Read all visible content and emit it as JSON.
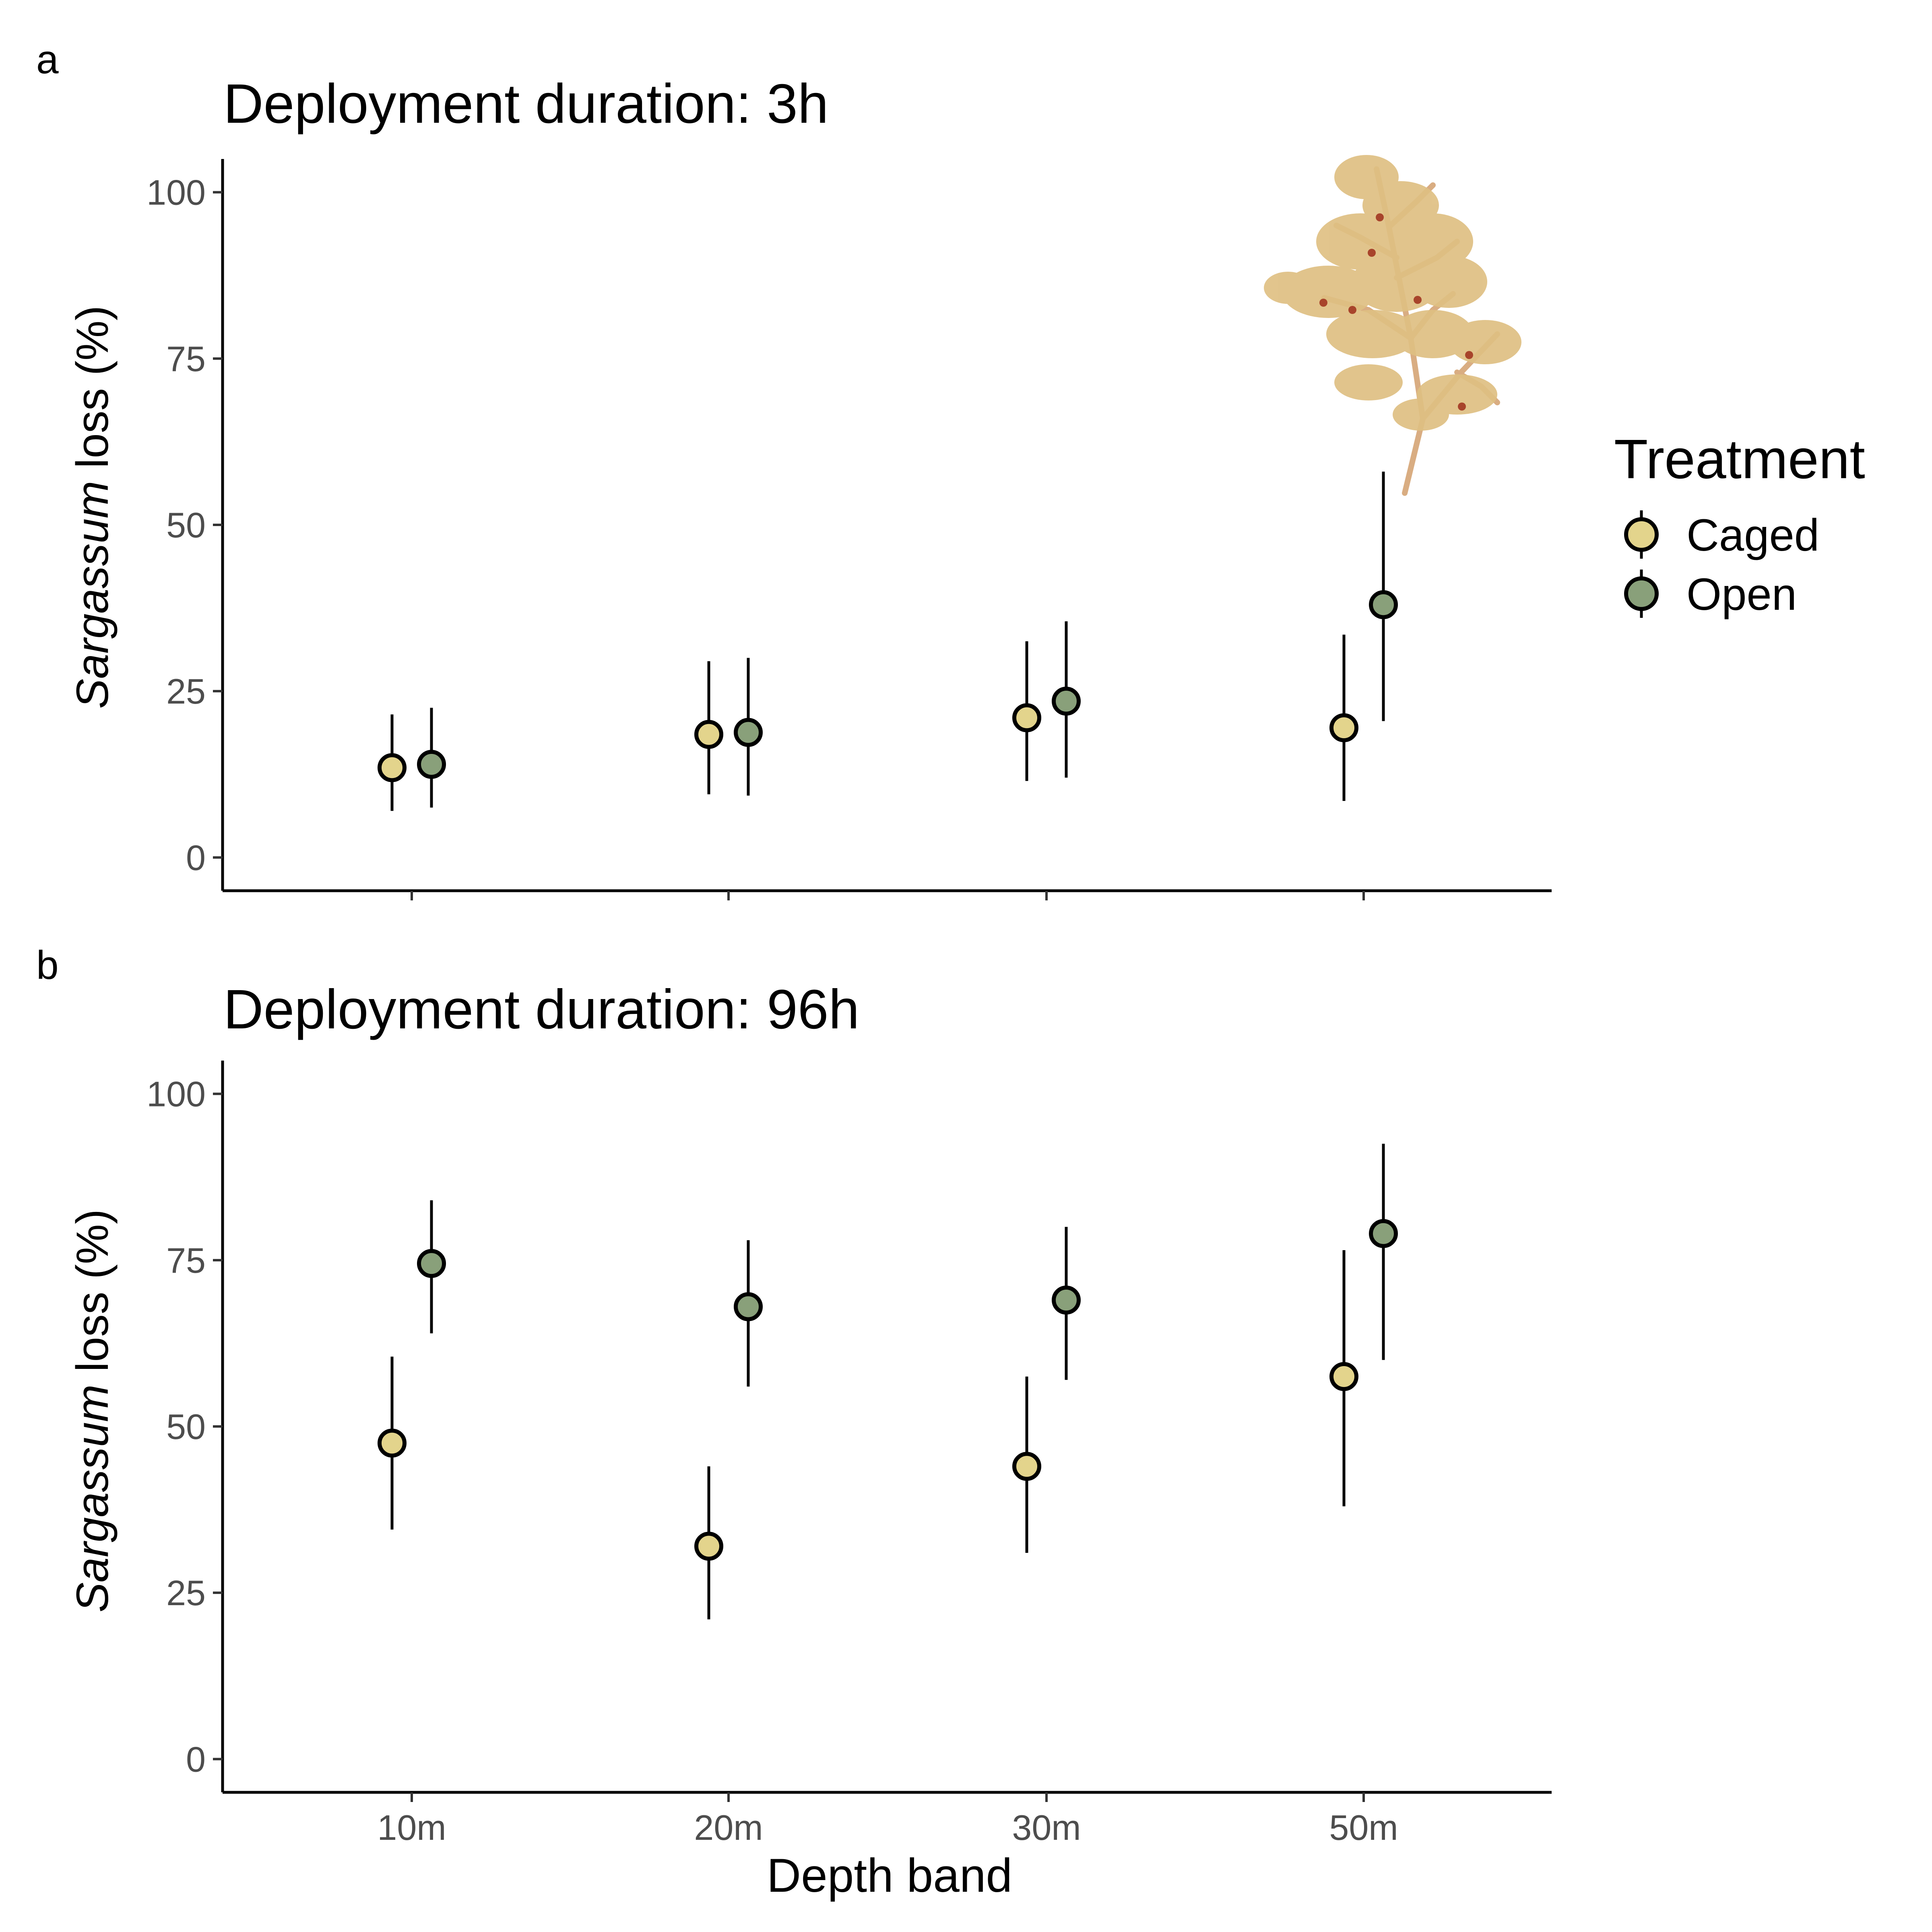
{
  "figure": {
    "panels_meta": [
      {
        "letter": "a",
        "title": "Deployment duration: 3h"
      },
      {
        "letter": "b",
        "title": "Deployment duration: 96h"
      }
    ],
    "ylabel_italic": "Sargassum",
    "ylabel_rest": " loss (%)",
    "xlabel": "Depth band",
    "legend": {
      "title": "Treatment",
      "items": [
        {
          "label": "Caged",
          "color": "#e3d48c"
        },
        {
          "label": "Open",
          "color": "#89a07a"
        }
      ]
    }
  },
  "chart_data": [
    {
      "type": "scatter",
      "title": "Deployment duration: 3h",
      "xlabel": "",
      "ylabel": "Sargassum loss (%)",
      "categories": [
        "10m",
        "20m",
        "30m",
        "50m"
      ],
      "ylim": [
        -5,
        105
      ],
      "yticks": [
        0,
        25,
        50,
        75,
        100
      ],
      "grid": false,
      "legend_position": "right",
      "series": [
        {
          "name": "Caged",
          "color": "#e3d48c",
          "values": [
            13.5,
            18.5,
            21.0,
            19.5
          ],
          "lower": [
            7.0,
            9.5,
            11.5,
            8.5
          ],
          "upper": [
            21.5,
            29.5,
            32.5,
            33.5
          ]
        },
        {
          "name": "Open",
          "color": "#89a07a",
          "values": [
            14.0,
            18.8,
            23.5,
            38.0
          ],
          "lower": [
            7.5,
            9.3,
            12.0,
            20.5
          ],
          "upper": [
            22.5,
            30.0,
            35.5,
            58.0
          ]
        }
      ]
    },
    {
      "type": "scatter",
      "title": "Deployment duration: 96h",
      "xlabel": "Depth band",
      "ylabel": "Sargassum loss (%)",
      "categories": [
        "10m",
        "20m",
        "30m",
        "50m"
      ],
      "ylim": [
        -5,
        105
      ],
      "yticks": [
        0,
        25,
        50,
        75,
        100
      ],
      "grid": false,
      "legend_position": "right",
      "series": [
        {
          "name": "Caged",
          "color": "#e3d48c",
          "values": [
            47.5,
            32.0,
            44.0,
            57.5
          ],
          "lower": [
            34.5,
            21.0,
            31.0,
            38.0
          ],
          "upper": [
            60.5,
            44.0,
            57.5,
            76.5
          ]
        },
        {
          "name": "Open",
          "color": "#89a07a",
          "values": [
            74.5,
            68.0,
            69.0,
            79.0
          ],
          "lower": [
            64.0,
            56.0,
            57.0,
            60.0
          ],
          "upper": [
            84.0,
            78.0,
            80.0,
            92.5
          ]
        }
      ]
    }
  ]
}
